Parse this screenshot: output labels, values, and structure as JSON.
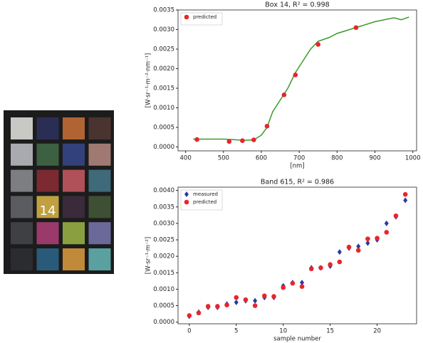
{
  "image": {
    "label": "14"
  },
  "chart_data": [
    {
      "type": "line",
      "title": "Box 14,  R² = 0.998",
      "xlabel": "[nm]",
      "ylabel": "[W·sr⁻¹·m⁻²·nm⁻¹]",
      "xlim": [
        380,
        1010
      ],
      "xticks": [
        400,
        500,
        600,
        700,
        800,
        900,
        1000
      ],
      "ylim": [
        -0.0001,
        0.0035
      ],
      "yticks": [
        {
          "value": 0,
          "label": "0.0000"
        },
        {
          "value": 0.0005,
          "label": "0.0005"
        },
        {
          "value": 0.001,
          "label": "0.0010"
        },
        {
          "value": 0.0015,
          "label": "0.0015"
        },
        {
          "value": 0.002,
          "label": "0.0020"
        },
        {
          "value": 0.0025,
          "label": "0.0025"
        },
        {
          "value": 0.003,
          "label": "0.0030"
        },
        {
          "value": 0.0035,
          "label": "0.0035"
        }
      ],
      "legend": "upper left",
      "series": [
        {
          "kind": "line",
          "color": "#3a9a2a",
          "x": [
            420,
            450,
            500,
            520,
            550,
            580,
            600,
            615,
            630,
            650,
            670,
            690,
            710,
            730,
            750,
            780,
            800,
            850,
            900,
            950,
            970,
            990
          ],
          "values": [
            0.0002,
            0.0002,
            0.0002,
            0.00019,
            0.00017,
            0.00018,
            0.0003,
            0.0005,
            0.0009,
            0.0012,
            0.0015,
            0.0019,
            0.0022,
            0.0025,
            0.0027,
            0.0028,
            0.0029,
            0.00305,
            0.0032,
            0.0033,
            0.00325,
            0.00332
          ]
        },
        {
          "kind": "circle",
          "name": "predicted",
          "color": "#e8262a",
          "x": [
            430,
            515,
            550,
            580,
            615,
            660,
            690,
            750,
            850
          ],
          "values": [
            0.00019,
            0.00014,
            0.00016,
            0.00018,
            0.00053,
            0.00133,
            0.00184,
            0.00262,
            0.00305
          ]
        }
      ]
    },
    {
      "type": "scatter",
      "title": "Band 615,  R² = 0.986",
      "xlabel": "sample number",
      "ylabel": "[W·sr⁻¹·m⁻²]",
      "xlim": [
        -1.2,
        24.2
      ],
      "xticks": [
        0,
        5,
        10,
        15,
        20
      ],
      "ylim": [
        -5e-05,
        0.0041
      ],
      "yticks": [
        {
          "value": 0,
          "label": "0.0000"
        },
        {
          "value": 0.0005,
          "label": "0.0005"
        },
        {
          "value": 0.001,
          "label": "0.0010"
        },
        {
          "value": 0.0015,
          "label": "0.0015"
        },
        {
          "value": 0.002,
          "label": "0.0020"
        },
        {
          "value": 0.0025,
          "label": "0.0025"
        },
        {
          "value": 0.003,
          "label": "0.0030"
        },
        {
          "value": 0.0035,
          "label": "0.0035"
        },
        {
          "value": 0.004,
          "label": "0.0040"
        }
      ],
      "legend": "upper left",
      "series": [
        {
          "kind": "diamond",
          "name": "measured",
          "color": "#2a3aa0",
          "x": [
            0,
            1,
            2,
            3,
            4,
            5,
            6,
            7,
            8,
            9,
            10,
            11,
            12,
            13,
            14,
            15,
            16,
            17,
            18,
            19,
            20,
            21,
            22,
            23
          ],
          "values": [
            0.00018,
            0.0003,
            0.00045,
            0.00045,
            0.00055,
            0.0006,
            0.00065,
            0.00065,
            0.00075,
            0.00075,
            0.0011,
            0.0012,
            0.0012,
            0.00165,
            0.00165,
            0.0017,
            0.00213,
            0.00225,
            0.0023,
            0.0024,
            0.0025,
            0.003,
            0.0032,
            0.0037
          ]
        },
        {
          "kind": "circle",
          "name": "predicted",
          "color": "#e8262a",
          "x": [
            0,
            1,
            2,
            3,
            4,
            5,
            6,
            7,
            8,
            9,
            10,
            11,
            12,
            13,
            14,
            15,
            16,
            17,
            18,
            19,
            20,
            21,
            22,
            23
          ],
          "values": [
            0.0002,
            0.00028,
            0.00048,
            0.00048,
            0.00052,
            0.00075,
            0.00068,
            0.0005,
            0.0008,
            0.00078,
            0.00105,
            0.00118,
            0.00108,
            0.00162,
            0.00165,
            0.00175,
            0.00183,
            0.00228,
            0.00218,
            0.00253,
            0.00255,
            0.00273,
            0.00323,
            0.00388
          ]
        }
      ]
    }
  ]
}
